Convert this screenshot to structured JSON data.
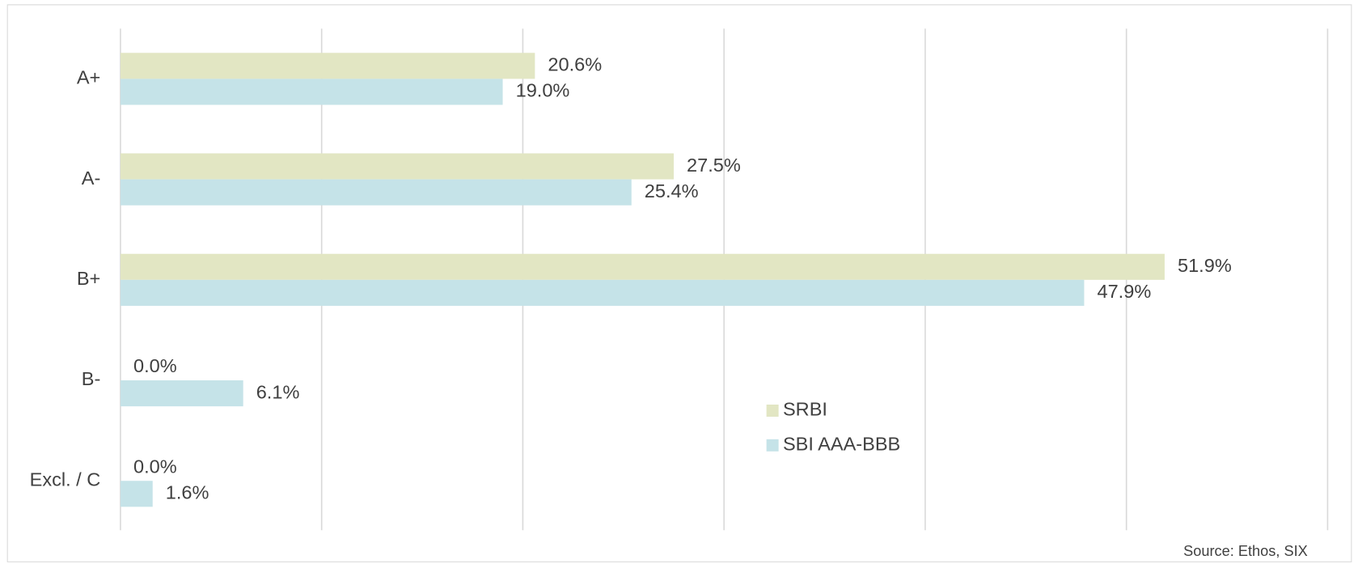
{
  "chart_data": {
    "type": "hbar",
    "categories": [
      "A+",
      "A-",
      "B+",
      "B-",
      "Excl. / C"
    ],
    "series": [
      {
        "name": "SRBI",
        "color": "#e2e6c3",
        "values": [
          20.6,
          27.5,
          51.9,
          0.0,
          0.0
        ],
        "value_labels": [
          "20.6%",
          "27.5%",
          "51.9%",
          "0.0%",
          "0.0%"
        ]
      },
      {
        "name": "SBI AAA-BBB",
        "color": "#c5e3e8",
        "values": [
          19.0,
          25.4,
          47.9,
          6.1,
          1.6
        ],
        "value_labels": [
          "19.0%",
          "25.4%",
          "47.9%",
          "6.1%",
          "1.6%"
        ]
      }
    ],
    "xlim": [
      0,
      60
    ],
    "xticks": [
      0,
      10,
      20,
      30,
      40,
      50,
      60
    ],
    "grid": true,
    "source": "Source: Ethos, SIX"
  }
}
